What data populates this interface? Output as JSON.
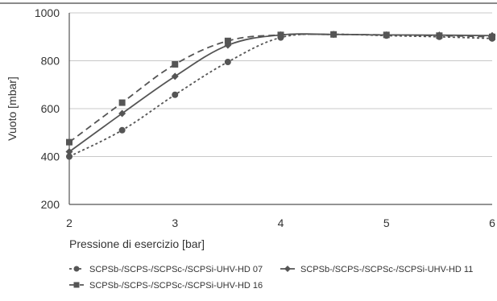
{
  "chart_data": {
    "type": "line",
    "title": "",
    "xlabel": "Pressione di esercizio [bar]",
    "ylabel": "Vuoto [mbar]",
    "xlim": [
      2,
      6
    ],
    "ylim": [
      200,
      1000
    ],
    "xticks": [
      2,
      3,
      4,
      5,
      6
    ],
    "yticks": [
      200,
      400,
      600,
      800,
      1000
    ],
    "grid": "horizontal",
    "legend_position": "bottom",
    "series": [
      {
        "name": "SCPSb-/SCPS-/SCPSc-/SCPSi-UHV-HD 07",
        "marker": "circle",
        "dash": "short",
        "color": "#555555",
        "x": [
          2,
          2.5,
          3,
          3.5,
          4,
          4.5,
          5,
          5.5,
          6
        ],
        "y": [
          400,
          510,
          658,
          795,
          897,
          910,
          905,
          900,
          893
        ]
      },
      {
        "name": "SCPSb-/SCPS-/SCPSc-/SCPSi-UHV-HD 11",
        "marker": "diamond",
        "dash": "solid",
        "color": "#555555",
        "x": [
          2,
          2.5,
          3,
          3.5,
          4,
          4.5,
          5,
          5.5,
          6
        ],
        "y": [
          420,
          580,
          735,
          865,
          908,
          910,
          908,
          907,
          905
        ]
      },
      {
        "name": "SCPSb-/SCPS-/SCPSc-/SCPSi-UHV-HD 16",
        "marker": "square",
        "dash": "long",
        "color": "#555555",
        "x": [
          2,
          2.5,
          3,
          3.5,
          4,
          4.5,
          5,
          5.5,
          6
        ],
        "y": [
          460,
          625,
          785,
          883,
          908,
          910,
          908,
          905,
          900
        ]
      }
    ]
  }
}
